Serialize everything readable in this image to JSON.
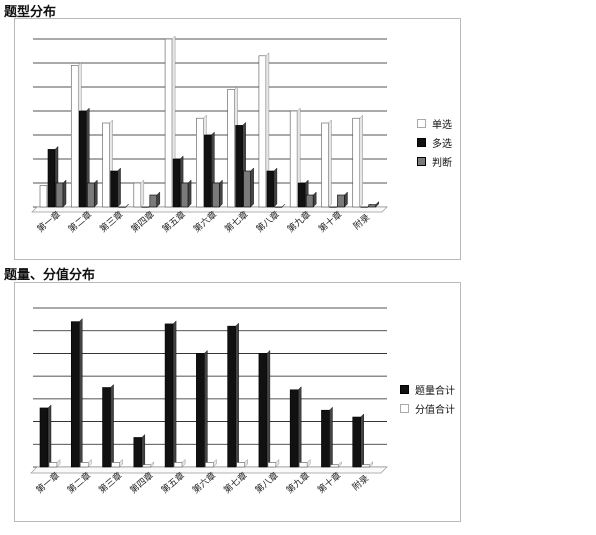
{
  "sections": {
    "dist_title": "题型分布",
    "score_title": "题量、分值分布"
  },
  "chart_data": [
    {
      "type": "bar",
      "title": "题型分布",
      "categories": [
        "第一章",
        "第二章",
        "第三章",
        "第四章",
        "第五章",
        "第六章",
        "第七章",
        "第八章",
        "第九章",
        "第十章",
        "附录"
      ],
      "ylim": [
        0,
        7
      ],
      "grid": true,
      "legend_position": "right",
      "series": [
        {
          "name": "单选",
          "color": "#ffffff",
          "values": [
            0.9,
            5.9,
            3.5,
            1.0,
            7.0,
            3.7,
            4.9,
            6.3,
            4.0,
            3.5,
            3.7
          ]
        },
        {
          "name": "多选",
          "color": "#111111",
          "values": [
            2.4,
            4.0,
            1.5,
            0.0,
            2.0,
            3.0,
            3.4,
            1.5,
            1.0,
            0.0,
            0.0
          ]
        },
        {
          "name": "判断",
          "color": "#7a7a7a",
          "values": [
            1.0,
            1.0,
            0.0,
            0.5,
            1.0,
            1.0,
            1.5,
            0.0,
            0.5,
            0.5,
            0.1
          ]
        }
      ]
    },
    {
      "type": "bar",
      "title": "题量、分值分布",
      "categories": [
        "第一章",
        "第二章",
        "第三章",
        "第四章",
        "第五章",
        "第六章",
        "第七章",
        "第八章",
        "第九章",
        "第十章",
        "附录"
      ],
      "ylim": [
        0,
        7
      ],
      "grid": true,
      "legend_position": "right",
      "series": [
        {
          "name": "题量合计",
          "color": "#111111",
          "values": [
            2.6,
            6.4,
            3.5,
            1.3,
            6.3,
            5.0,
            6.2,
            5.0,
            3.4,
            2.5,
            2.2
          ]
        },
        {
          "name": "分值合计",
          "color": "#ffffff",
          "values": [
            0.2,
            0.2,
            0.2,
            0.1,
            0.2,
            0.2,
            0.2,
            0.2,
            0.2,
            0.1,
            0.1
          ]
        }
      ]
    }
  ]
}
